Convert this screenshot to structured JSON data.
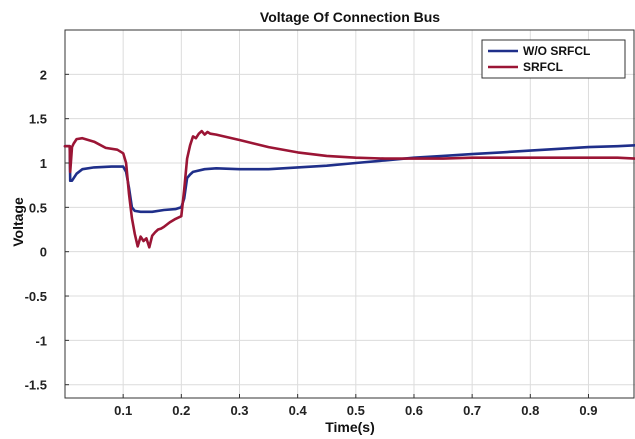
{
  "chart_data": {
    "type": "line",
    "title": "Voltage Of Connection Bus",
    "xlabel": "Time(s)",
    "ylabel": "Voltage",
    "xlim": [
      0,
      0.98
    ],
    "ylim": [
      -1.65,
      2.5
    ],
    "grid": true,
    "legend_position": "top-right",
    "x_ticks": [
      0.1,
      0.2,
      0.3,
      0.4,
      0.5,
      0.6,
      0.7,
      0.8,
      0.9
    ],
    "x_tick_labels": [
      "0.1",
      "0.2",
      "0.3",
      "0.4",
      "0.5",
      "0.6",
      "0.7",
      "0.8",
      "0.9"
    ],
    "y_ticks": [
      2,
      1.5,
      1,
      0.5,
      0,
      -0.5,
      -1,
      -1.5
    ],
    "y_tick_labels": [
      "2",
      "1.5",
      "1",
      "0.5",
      "0",
      "-0.5",
      "-1",
      "-1.5"
    ],
    "series": [
      {
        "name": "W/O SRFCL",
        "color": "#1f2f8a",
        "x": [
          0,
          0.008,
          0.009,
          0.012,
          0.02,
          0.03,
          0.05,
          0.08,
          0.1,
          0.105,
          0.11,
          0.115,
          0.12,
          0.13,
          0.15,
          0.17,
          0.19,
          0.2,
          0.205,
          0.21,
          0.215,
          0.22,
          0.24,
          0.26,
          0.3,
          0.35,
          0.4,
          0.45,
          0.5,
          0.55,
          0.6,
          0.65,
          0.7,
          0.75,
          0.8,
          0.85,
          0.9,
          0.95,
          0.98
        ],
        "y": [
          1.19,
          1.19,
          0.8,
          0.8,
          0.88,
          0.93,
          0.95,
          0.96,
          0.96,
          0.9,
          0.72,
          0.5,
          0.46,
          0.45,
          0.45,
          0.47,
          0.48,
          0.5,
          0.6,
          0.83,
          0.87,
          0.9,
          0.93,
          0.94,
          0.93,
          0.93,
          0.95,
          0.97,
          1.0,
          1.03,
          1.06,
          1.08,
          1.1,
          1.12,
          1.14,
          1.16,
          1.18,
          1.19,
          1.2
        ]
      },
      {
        "name": "SRFCL",
        "color": "#9b1535",
        "x": [
          0,
          0.008,
          0.009,
          0.012,
          0.015,
          0.02,
          0.03,
          0.05,
          0.07,
          0.09,
          0.1,
          0.105,
          0.11,
          0.115,
          0.12,
          0.125,
          0.13,
          0.135,
          0.14,
          0.145,
          0.15,
          0.155,
          0.16,
          0.165,
          0.17,
          0.18,
          0.19,
          0.2,
          0.205,
          0.21,
          0.215,
          0.22,
          0.225,
          0.23,
          0.235,
          0.24,
          0.245,
          0.25,
          0.26,
          0.3,
          0.35,
          0.4,
          0.45,
          0.5,
          0.55,
          0.6,
          0.65,
          0.7,
          0.75,
          0.8,
          0.85,
          0.9,
          0.95,
          0.98
        ],
        "y": [
          1.19,
          1.19,
          0.9,
          1.18,
          1.22,
          1.27,
          1.28,
          1.24,
          1.17,
          1.15,
          1.11,
          1.0,
          0.65,
          0.38,
          0.2,
          0.06,
          0.17,
          0.12,
          0.15,
          0.05,
          0.18,
          0.22,
          0.25,
          0.26,
          0.28,
          0.33,
          0.37,
          0.4,
          0.7,
          1.05,
          1.2,
          1.3,
          1.28,
          1.33,
          1.36,
          1.32,
          1.35,
          1.33,
          1.32,
          1.26,
          1.18,
          1.12,
          1.08,
          1.06,
          1.05,
          1.05,
          1.05,
          1.06,
          1.06,
          1.06,
          1.06,
          1.06,
          1.06,
          1.05
        ]
      }
    ]
  }
}
